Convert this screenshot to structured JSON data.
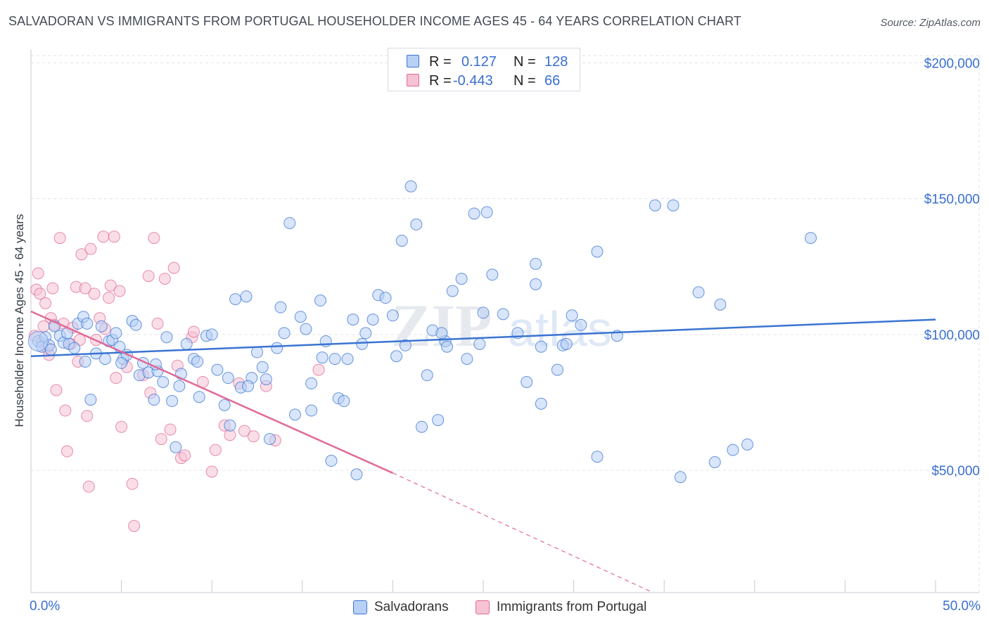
{
  "header": {
    "title": "SALVADORAN VS IMMIGRANTS FROM PORTUGAL HOUSEHOLDER INCOME AGES 45 - 64 YEARS CORRELATION CHART",
    "source": "Source: ZipAtlas.com"
  },
  "watermark": {
    "zip": "ZIP",
    "atlas": "atlas"
  },
  "colors": {
    "blue": "#3a74d2",
    "blue_fill": "#b8d0f5",
    "pink": "#e06a98",
    "pink_fill": "#f6c2d4",
    "grid": "#dfe3ea",
    "tick_label": "#3a6fd0"
  },
  "stats": {
    "rows": [
      {
        "r_label": "R =",
        "r_value": "0.127",
        "n_label": "N =",
        "n_value": "128",
        "series": "blue"
      },
      {
        "r_label": "R =",
        "r_value": "-0.443",
        "n_label": "N =",
        "n_value": "66",
        "series": "pink"
      }
    ]
  },
  "legend": {
    "items": [
      {
        "label": "Salvadorans",
        "series": "blue"
      },
      {
        "label": "Immigrants from Portugal",
        "series": "pink"
      }
    ]
  },
  "chart_data": {
    "type": "scatter",
    "title": "SALVADORAN VS IMMIGRANTS FROM PORTUGAL HOUSEHOLDER INCOME AGES 45 - 64 YEARS CORRELATION CHART",
    "xlabel": "",
    "ylabel": "Householder Income Ages 45 - 64 years",
    "x_tick_labels": [
      "0.0%",
      "50.0%"
    ],
    "y_tick_labels": [
      "$50,000",
      "$100,000",
      "$150,000",
      "$200,000"
    ],
    "y_ticks": [
      50000,
      100000,
      150000,
      200000
    ],
    "xlim": [
      0,
      50
    ],
    "ylim": [
      5000,
      205000
    ],
    "grid": true,
    "legend_position": "bottom",
    "series": [
      {
        "name": "Salvadorans",
        "color": "#3a74d2",
        "trend": {
          "x": [
            0,
            50
          ],
          "y": [
            92000,
            105500
          ],
          "style": "solid"
        },
        "points": [
          [
            0.4,
            97500
          ],
          [
            0.6,
            95500
          ],
          [
            0.8,
            99000
          ],
          [
            1.0,
            96000
          ],
          [
            1.3,
            103000
          ],
          [
            1.6,
            99500
          ],
          [
            1.8,
            97000
          ],
          [
            2.1,
            96500
          ],
          [
            2.4,
            95000
          ],
          [
            2.6,
            104000
          ],
          [
            2.9,
            106500
          ],
          [
            3.0,
            90000
          ],
          [
            3.3,
            76000
          ],
          [
            3.6,
            93000
          ],
          [
            3.9,
            103000
          ],
          [
            4.1,
            91000
          ],
          [
            4.3,
            97500
          ],
          [
            4.5,
            98000
          ],
          [
            4.7,
            100500
          ],
          [
            4.9,
            95500
          ],
          [
            5.1,
            91000
          ],
          [
            5.3,
            92500
          ],
          [
            5.6,
            105000
          ],
          [
            5.8,
            103500
          ],
          [
            6.0,
            85000
          ],
          [
            6.2,
            89500
          ],
          [
            6.5,
            86000
          ],
          [
            6.8,
            76000
          ],
          [
            7.0,
            86500
          ],
          [
            7.3,
            82500
          ],
          [
            7.5,
            99000
          ],
          [
            7.8,
            75500
          ],
          [
            8.0,
            58500
          ],
          [
            8.3,
            85500
          ],
          [
            8.6,
            96500
          ],
          [
            9.0,
            91000
          ],
          [
            9.3,
            77000
          ],
          [
            9.7,
            99500
          ],
          [
            10.0,
            100000
          ],
          [
            10.3,
            87000
          ],
          [
            10.7,
            74000
          ],
          [
            11.0,
            66500
          ],
          [
            11.3,
            113000
          ],
          [
            11.6,
            80500
          ],
          [
            11.9,
            114000
          ],
          [
            12.2,
            84000
          ],
          [
            12.5,
            93500
          ],
          [
            12.8,
            88000
          ],
          [
            13.0,
            83500
          ],
          [
            13.2,
            61500
          ],
          [
            13.8,
            110000
          ],
          [
            14.0,
            100500
          ],
          [
            14.3,
            141000
          ],
          [
            14.6,
            70500
          ],
          [
            14.9,
            106500
          ],
          [
            15.2,
            102000
          ],
          [
            15.5,
            72000
          ],
          [
            15.5,
            82000
          ],
          [
            16.0,
            112500
          ],
          [
            16.3,
            97500
          ],
          [
            16.6,
            53500
          ],
          [
            16.8,
            91000
          ],
          [
            17.0,
            76500
          ],
          [
            17.3,
            75500
          ],
          [
            17.5,
            91000
          ],
          [
            17.8,
            105500
          ],
          [
            18.0,
            48500
          ],
          [
            18.5,
            100500
          ],
          [
            18.9,
            105500
          ],
          [
            19.2,
            114500
          ],
          [
            19.6,
            113500
          ],
          [
            20.0,
            107000
          ],
          [
            20.2,
            92000
          ],
          [
            20.5,
            134500
          ],
          [
            20.7,
            96000
          ],
          [
            21.0,
            154500
          ],
          [
            21.3,
            140500
          ],
          [
            21.6,
            66000
          ],
          [
            21.9,
            85000
          ],
          [
            22.2,
            101500
          ],
          [
            22.5,
            68500
          ],
          [
            22.9,
            97500
          ],
          [
            23.0,
            95500
          ],
          [
            23.3,
            116000
          ],
          [
            23.8,
            120500
          ],
          [
            24.1,
            91000
          ],
          [
            24.5,
            144500
          ],
          [
            24.8,
            96500
          ],
          [
            25.0,
            108000
          ],
          [
            25.2,
            145000
          ],
          [
            25.5,
            122000
          ],
          [
            26.1,
            107500
          ],
          [
            26.9,
            100500
          ],
          [
            27.4,
            82500
          ],
          [
            27.9,
            126000
          ],
          [
            27.9,
            118500
          ],
          [
            28.2,
            74500
          ],
          [
            28.2,
            95500
          ],
          [
            29.1,
            87000
          ],
          [
            29.4,
            96000
          ],
          [
            29.6,
            96500
          ],
          [
            29.9,
            107000
          ],
          [
            30.4,
            103500
          ],
          [
            31.3,
            130500
          ],
          [
            31.3,
            55000
          ],
          [
            32.4,
            99500
          ],
          [
            34.5,
            147500
          ],
          [
            35.5,
            147500
          ],
          [
            35.9,
            47500
          ],
          [
            36.9,
            115500
          ],
          [
            37.8,
            53000
          ],
          [
            38.1,
            111000
          ],
          [
            38.8,
            57500
          ],
          [
            39.6,
            59500
          ],
          [
            43.1,
            135500
          ],
          [
            1.1,
            94500
          ],
          [
            2.0,
            100500
          ],
          [
            3.1,
            104000
          ],
          [
            5.0,
            89500
          ],
          [
            6.9,
            89000
          ],
          [
            8.2,
            81000
          ],
          [
            9.2,
            90000
          ],
          [
            10.9,
            84000
          ],
          [
            12.0,
            81000
          ],
          [
            13.6,
            95000
          ],
          [
            16.1,
            91500
          ],
          [
            18.3,
            96500
          ],
          [
            22.7,
            100500
          ]
        ]
      },
      {
        "name": "Immigrants from Portugal",
        "color": "#e06a98",
        "trend": {
          "x": [
            0,
            20
          ],
          "y": [
            108500,
            49000
          ],
          "style": "solid",
          "dashed_extension": {
            "x": [
              20,
              37
            ],
            "y": [
              49000,
              -3000
            ]
          }
        },
        "points": [
          [
            0.2,
            99500
          ],
          [
            0.3,
            116500
          ],
          [
            0.4,
            122500
          ],
          [
            0.5,
            115000
          ],
          [
            0.6,
            97000
          ],
          [
            0.8,
            111500
          ],
          [
            0.9,
            95000
          ],
          [
            1.0,
            92500
          ],
          [
            1.1,
            106000
          ],
          [
            1.2,
            117000
          ],
          [
            1.3,
            103500
          ],
          [
            1.4,
            79500
          ],
          [
            1.6,
            135500
          ],
          [
            1.8,
            104000
          ],
          [
            1.9,
            72000
          ],
          [
            2.0,
            57000
          ],
          [
            2.2,
            96500
          ],
          [
            2.3,
            102500
          ],
          [
            2.5,
            117500
          ],
          [
            2.6,
            90000
          ],
          [
            2.8,
            129500
          ],
          [
            3.0,
            117000
          ],
          [
            3.1,
            70000
          ],
          [
            3.2,
            44000
          ],
          [
            3.3,
            131500
          ],
          [
            3.5,
            115000
          ],
          [
            3.6,
            98000
          ],
          [
            3.8,
            106000
          ],
          [
            4.0,
            136000
          ],
          [
            4.1,
            102000
          ],
          [
            4.3,
            113500
          ],
          [
            4.4,
            118000
          ],
          [
            4.6,
            136000
          ],
          [
            4.7,
            84000
          ],
          [
            4.9,
            116000
          ],
          [
            5.0,
            66000
          ],
          [
            5.3,
            88000
          ],
          [
            5.6,
            45000
          ],
          [
            5.7,
            29500
          ],
          [
            6.2,
            85000
          ],
          [
            6.5,
            121500
          ],
          [
            6.6,
            78500
          ],
          [
            6.8,
            135500
          ],
          [
            7.0,
            104000
          ],
          [
            7.2,
            61500
          ],
          [
            7.4,
            120500
          ],
          [
            7.7,
            65000
          ],
          [
            7.9,
            124500
          ],
          [
            8.1,
            88500
          ],
          [
            8.3,
            54500
          ],
          [
            8.5,
            55500
          ],
          [
            8.9,
            99000
          ],
          [
            9.0,
            101000
          ],
          [
            9.5,
            82500
          ],
          [
            10.0,
            49500
          ],
          [
            10.2,
            57500
          ],
          [
            10.7,
            66500
          ],
          [
            11.0,
            63000
          ],
          [
            11.5,
            82000
          ],
          [
            11.8,
            64500
          ],
          [
            12.3,
            62500
          ],
          [
            13.0,
            81000
          ],
          [
            13.5,
            61000
          ],
          [
            15.9,
            87000
          ],
          [
            0.7,
            103000
          ],
          [
            2.7,
            98000
          ]
        ]
      }
    ]
  }
}
